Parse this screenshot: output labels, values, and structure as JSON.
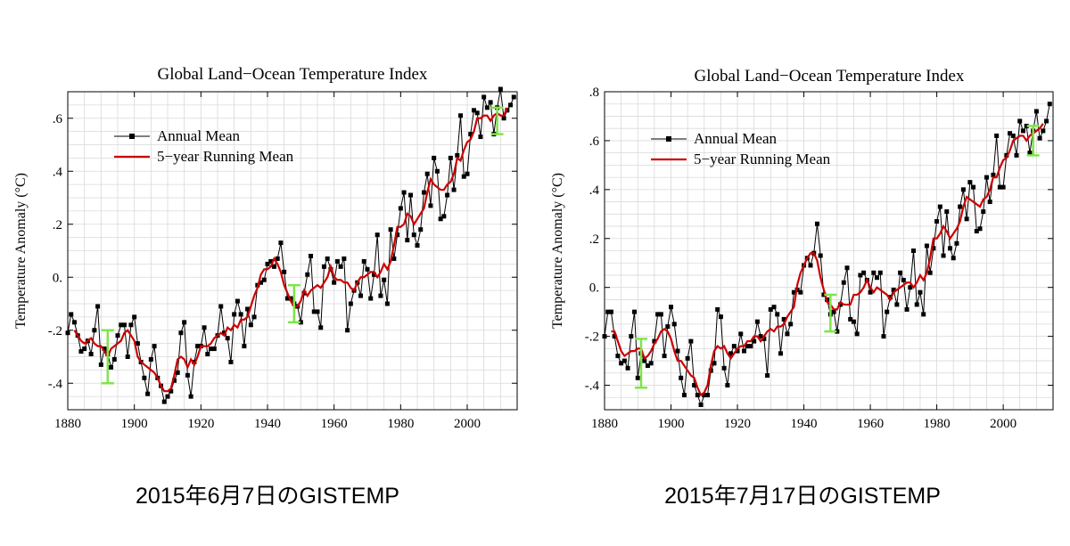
{
  "chart_data": [
    {
      "type": "line",
      "title": "Global Land−Ocean Temperature Index",
      "ylabel": "Temperature Anomaly (°C)",
      "xlabel": "",
      "xlim": [
        1880,
        2015
      ],
      "ylim": [
        -0.5,
        0.7
      ],
      "xticks": [
        1880,
        1900,
        1920,
        1940,
        1960,
        1980,
        2000
      ],
      "xtick_labels": [
        "1880",
        "1900",
        "1920",
        "1940",
        "1960",
        "1980",
        "2000"
      ],
      "yticks": [
        -0.4,
        -0.2,
        0.0,
        0.2,
        0.4,
        0.6
      ],
      "ytick_labels": [
        "-.4",
        "-.2",
        "0.",
        ".2",
        ".4",
        ".6"
      ],
      "legend": [
        "Annual Mean",
        "5−year Running Mean"
      ],
      "legend_position": "upper-left",
      "colors": {
        "annual": "#000000",
        "running": "#cc0000",
        "errorbar": "#7fe44a",
        "grid": "#d9d9d9"
      },
      "x": [
        1880,
        1881,
        1882,
        1883,
        1884,
        1885,
        1886,
        1887,
        1888,
        1889,
        1890,
        1891,
        1892,
        1893,
        1894,
        1895,
        1896,
        1897,
        1898,
        1899,
        1900,
        1901,
        1902,
        1903,
        1904,
        1905,
        1906,
        1907,
        1908,
        1909,
        1910,
        1911,
        1912,
        1913,
        1914,
        1915,
        1916,
        1917,
        1918,
        1919,
        1920,
        1921,
        1922,
        1923,
        1924,
        1925,
        1926,
        1927,
        1928,
        1929,
        1930,
        1931,
        1932,
        1933,
        1934,
        1935,
        1936,
        1937,
        1938,
        1939,
        1940,
        1941,
        1942,
        1943,
        1944,
        1945,
        1946,
        1947,
        1948,
        1949,
        1950,
        1951,
        1952,
        1953,
        1954,
        1955,
        1956,
        1957,
        1958,
        1959,
        1960,
        1961,
        1962,
        1963,
        1964,
        1965,
        1966,
        1967,
        1968,
        1969,
        1970,
        1971,
        1972,
        1973,
        1974,
        1975,
        1976,
        1977,
        1978,
        1979,
        1980,
        1981,
        1982,
        1983,
        1984,
        1985,
        1986,
        1987,
        1988,
        1989,
        1990,
        1991,
        1992,
        1993,
        1994,
        1995,
        1996,
        1997,
        1998,
        1999,
        2000,
        2001,
        2002,
        2003,
        2004,
        2005,
        2006,
        2007,
        2008,
        2009,
        2010,
        2011,
        2012,
        2013,
        2014
      ],
      "series": [
        {
          "name": "Annual Mean",
          "values": [
            -0.21,
            -0.14,
            -0.17,
            -0.22,
            -0.28,
            -0.27,
            -0.24,
            -0.29,
            -0.2,
            -0.11,
            -0.33,
            -0.27,
            -0.29,
            -0.34,
            -0.31,
            -0.22,
            -0.18,
            -0.18,
            -0.3,
            -0.18,
            -0.15,
            -0.25,
            -0.32,
            -0.38,
            -0.44,
            -0.31,
            -0.26,
            -0.38,
            -0.41,
            -0.47,
            -0.45,
            -0.43,
            -0.39,
            -0.36,
            -0.21,
            -0.17,
            -0.37,
            -0.45,
            -0.32,
            -0.26,
            -0.26,
            -0.19,
            -0.29,
            -0.27,
            -0.27,
            -0.22,
            -0.11,
            -0.21,
            -0.23,
            -0.32,
            -0.14,
            -0.09,
            -0.14,
            -0.26,
            -0.12,
            -0.18,
            -0.15,
            -0.03,
            -0.02,
            -0.01,
            0.05,
            0.06,
            0.04,
            0.07,
            0.13,
            0.02,
            -0.08,
            -0.08,
            -0.1,
            -0.11,
            -0.17,
            -0.06,
            0.01,
            0.08,
            -0.13,
            -0.13,
            -0.19,
            0.04,
            0.07,
            0.03,
            -0.02,
            0.06,
            0.04,
            0.07,
            -0.2,
            -0.1,
            -0.05,
            -0.02,
            -0.07,
            0.06,
            0.03,
            -0.08,
            0.01,
            0.16,
            -0.07,
            -0.01,
            -0.1,
            0.18,
            0.07,
            0.16,
            0.26,
            0.32,
            0.14,
            0.31,
            0.16,
            0.12,
            0.18,
            0.32,
            0.39,
            0.27,
            0.45,
            0.4,
            0.22,
            0.23,
            0.31,
            0.45,
            0.33,
            0.46,
            0.61,
            0.38,
            0.39,
            0.54,
            0.63,
            0.62,
            0.53,
            0.68,
            0.64,
            0.66,
            0.54,
            0.64,
            0.71,
            0.6,
            0.63,
            0.65,
            0.68
          ]
        },
        {
          "name": "5−year Running Mean",
          "values": [
            null,
            null,
            -0.2,
            -0.22,
            -0.24,
            -0.25,
            -0.24,
            -0.23,
            -0.25,
            -0.26,
            -0.26,
            -0.28,
            -0.3,
            -0.27,
            -0.26,
            -0.25,
            -0.24,
            -0.21,
            -0.2,
            -0.22,
            -0.24,
            -0.3,
            -0.32,
            -0.33,
            -0.34,
            -0.35,
            -0.36,
            -0.38,
            -0.41,
            -0.43,
            -0.43,
            -0.42,
            -0.37,
            -0.31,
            -0.3,
            -0.31,
            -0.34,
            -0.31,
            -0.33,
            -0.3,
            -0.26,
            -0.26,
            -0.26,
            -0.25,
            -0.23,
            -0.22,
            -0.21,
            -0.22,
            -0.19,
            -0.2,
            -0.18,
            -0.19,
            -0.16,
            -0.16,
            -0.15,
            -0.11,
            -0.07,
            -0.04,
            0.01,
            0.03,
            0.03,
            0.04,
            0.07,
            0.05,
            0.02,
            -0.03,
            -0.06,
            -0.09,
            -0.11,
            -0.11,
            -0.09,
            -0.05,
            -0.07,
            -0.05,
            -0.04,
            -0.03,
            -0.04,
            -0.02,
            0.0,
            0.04,
            0.0,
            -0.01,
            -0.01,
            -0.02,
            -0.02,
            -0.04,
            -0.05,
            -0.02,
            0.0,
            0.0,
            0.01,
            0.02,
            0.02,
            0.0,
            0.02,
            0.05,
            0.03,
            0.06,
            0.12,
            0.19,
            0.19,
            0.2,
            0.24,
            0.23,
            0.2,
            0.22,
            0.24,
            0.26,
            0.32,
            0.37,
            0.35,
            0.34,
            0.33,
            0.33,
            0.35,
            0.36,
            0.39,
            0.45,
            0.44,
            0.48,
            0.51,
            0.52,
            0.55,
            0.6,
            0.6,
            0.61,
            0.61,
            0.59,
            0.61,
            0.62,
            0.61,
            0.61,
            0.64,
            null,
            null
          ]
        }
      ],
      "error_bars": [
        {
          "x": 1892,
          "low": -0.4,
          "high": -0.2
        },
        {
          "x": 1948,
          "low": -0.17,
          "high": -0.03
        },
        {
          "x": 2009,
          "low": 0.54,
          "high": 0.64
        }
      ],
      "caption": "2015年6月7日のGISTEMP"
    },
    {
      "type": "line",
      "title": "Global Land−Ocean Temperature Index",
      "ylabel": "Temperature Anomaly (°C)",
      "xlabel": "",
      "xlim": [
        1880,
        2015
      ],
      "ylim": [
        -0.5,
        0.8
      ],
      "xticks": [
        1880,
        1900,
        1920,
        1940,
        1960,
        1980,
        2000
      ],
      "xtick_labels": [
        "1880",
        "1900",
        "1920",
        "1940",
        "1960",
        "1980",
        "2000"
      ],
      "yticks": [
        -0.4,
        -0.2,
        0.0,
        0.2,
        0.4,
        0.6,
        0.8
      ],
      "ytick_labels": [
        "-.4",
        "-.2",
        "0.",
        ".2",
        ".4",
        ".6",
        ".8"
      ],
      "legend": [
        "Annual Mean",
        "5−year Running Mean"
      ],
      "legend_position": "upper-left",
      "colors": {
        "annual": "#000000",
        "running": "#cc0000",
        "errorbar": "#7fe44a",
        "grid": "#d9d9d9"
      },
      "x": [
        1880,
        1881,
        1882,
        1883,
        1884,
        1885,
        1886,
        1887,
        1888,
        1889,
        1890,
        1891,
        1892,
        1893,
        1894,
        1895,
        1896,
        1897,
        1898,
        1899,
        1900,
        1901,
        1902,
        1903,
        1904,
        1905,
        1906,
        1907,
        1908,
        1909,
        1910,
        1911,
        1912,
        1913,
        1914,
        1915,
        1916,
        1917,
        1918,
        1919,
        1920,
        1921,
        1922,
        1923,
        1924,
        1925,
        1926,
        1927,
        1928,
        1929,
        1930,
        1931,
        1932,
        1933,
        1934,
        1935,
        1936,
        1937,
        1938,
        1939,
        1940,
        1941,
        1942,
        1943,
        1944,
        1945,
        1946,
        1947,
        1948,
        1949,
        1950,
        1951,
        1952,
        1953,
        1954,
        1955,
        1956,
        1957,
        1958,
        1959,
        1960,
        1961,
        1962,
        1963,
        1964,
        1965,
        1966,
        1967,
        1968,
        1969,
        1970,
        1971,
        1972,
        1973,
        1974,
        1975,
        1976,
        1977,
        1978,
        1979,
        1980,
        1981,
        1982,
        1983,
        1984,
        1985,
        1986,
        1987,
        1988,
        1989,
        1990,
        1991,
        1992,
        1993,
        1994,
        1995,
        1996,
        1997,
        1998,
        1999,
        2000,
        2001,
        2002,
        2003,
        2004,
        2005,
        2006,
        2007,
        2008,
        2009,
        2010,
        2011,
        2012,
        2013,
        2014
      ],
      "series": [
        {
          "name": "Annual Mean",
          "values": [
            -0.2,
            -0.1,
            -0.1,
            -0.2,
            -0.28,
            -0.31,
            -0.3,
            -0.33,
            -0.2,
            -0.1,
            -0.37,
            -0.27,
            -0.3,
            -0.32,
            -0.31,
            -0.22,
            -0.11,
            -0.11,
            -0.28,
            -0.16,
            -0.08,
            -0.15,
            -0.26,
            -0.37,
            -0.44,
            -0.29,
            -0.22,
            -0.4,
            -0.44,
            -0.48,
            -0.44,
            -0.44,
            -0.34,
            -0.31,
            -0.09,
            -0.12,
            -0.33,
            -0.4,
            -0.27,
            -0.24,
            -0.26,
            -0.19,
            -0.26,
            -0.24,
            -0.24,
            -0.22,
            -0.14,
            -0.2,
            -0.21,
            -0.36,
            -0.09,
            -0.08,
            -0.11,
            -0.27,
            -0.13,
            -0.19,
            -0.15,
            -0.02,
            -0.01,
            -0.02,
            0.09,
            0.12,
            0.09,
            0.14,
            0.26,
            0.13,
            -0.03,
            -0.05,
            -0.11,
            -0.1,
            -0.18,
            -0.07,
            0.02,
            0.08,
            -0.13,
            -0.14,
            -0.19,
            0.05,
            0.06,
            0.03,
            -0.02,
            0.06,
            0.04,
            0.06,
            -0.2,
            -0.1,
            -0.04,
            -0.01,
            -0.07,
            0.06,
            0.03,
            -0.09,
            0.0,
            0.15,
            -0.07,
            -0.02,
            -0.11,
            0.17,
            0.06,
            0.16,
            0.27,
            0.33,
            0.13,
            0.31,
            0.16,
            0.12,
            0.18,
            0.33,
            0.4,
            0.28,
            0.43,
            0.41,
            0.23,
            0.24,
            0.31,
            0.45,
            0.35,
            0.46,
            0.62,
            0.41,
            0.41,
            0.54,
            0.63,
            0.62,
            0.54,
            0.68,
            0.64,
            0.66,
            0.55,
            0.64,
            0.72,
            0.61,
            0.64,
            0.68,
            0.75
          ]
        },
        {
          "name": "5−year Running Mean",
          "values": [
            null,
            null,
            -0.18,
            -0.18,
            -0.22,
            -0.26,
            -0.28,
            -0.27,
            -0.26,
            -0.26,
            -0.25,
            -0.25,
            -0.29,
            -0.28,
            -0.26,
            -0.23,
            -0.21,
            -0.18,
            -0.17,
            -0.18,
            -0.21,
            -0.26,
            -0.3,
            -0.3,
            -0.32,
            -0.34,
            -0.36,
            -0.37,
            -0.41,
            -0.44,
            -0.43,
            -0.4,
            -0.32,
            -0.26,
            -0.24,
            -0.25,
            -0.24,
            -0.27,
            -0.29,
            -0.27,
            -0.25,
            -0.24,
            -0.24,
            -0.22,
            -0.22,
            -0.2,
            -0.2,
            -0.22,
            -0.2,
            -0.18,
            -0.17,
            -0.18,
            -0.16,
            -0.16,
            -0.15,
            -0.12,
            -0.1,
            -0.08,
            0.01,
            0.06,
            0.09,
            0.12,
            0.14,
            0.14,
            0.11,
            0.04,
            -0.01,
            -0.06,
            -0.07,
            -0.09,
            -0.09,
            -0.06,
            -0.07,
            -0.07,
            -0.07,
            -0.03,
            -0.03,
            -0.02,
            0.0,
            0.03,
            0.0,
            -0.02,
            0.0,
            -0.01,
            -0.02,
            -0.03,
            -0.05,
            -0.02,
            -0.01,
            0.0,
            0.01,
            0.02,
            0.02,
            0.0,
            0.02,
            0.05,
            0.03,
            0.06,
            0.12,
            0.2,
            0.2,
            0.22,
            0.25,
            0.23,
            0.2,
            0.22,
            0.24,
            0.27,
            0.33,
            0.37,
            0.36,
            0.35,
            0.34,
            0.33,
            0.36,
            0.37,
            0.4,
            0.45,
            0.45,
            0.49,
            0.52,
            0.53,
            0.56,
            0.6,
            0.61,
            0.62,
            0.62,
            0.6,
            0.62,
            0.63,
            0.64,
            0.65,
            0.67,
            null,
            null
          ]
        }
      ],
      "error_bars": [
        {
          "x": 1891,
          "low": -0.41,
          "high": -0.21
        },
        {
          "x": 1948,
          "low": -0.18,
          "high": -0.03
        },
        {
          "x": 2009,
          "low": 0.54,
          "high": 0.66
        }
      ],
      "caption": "2015年7月17日のGISTEMP"
    }
  ]
}
